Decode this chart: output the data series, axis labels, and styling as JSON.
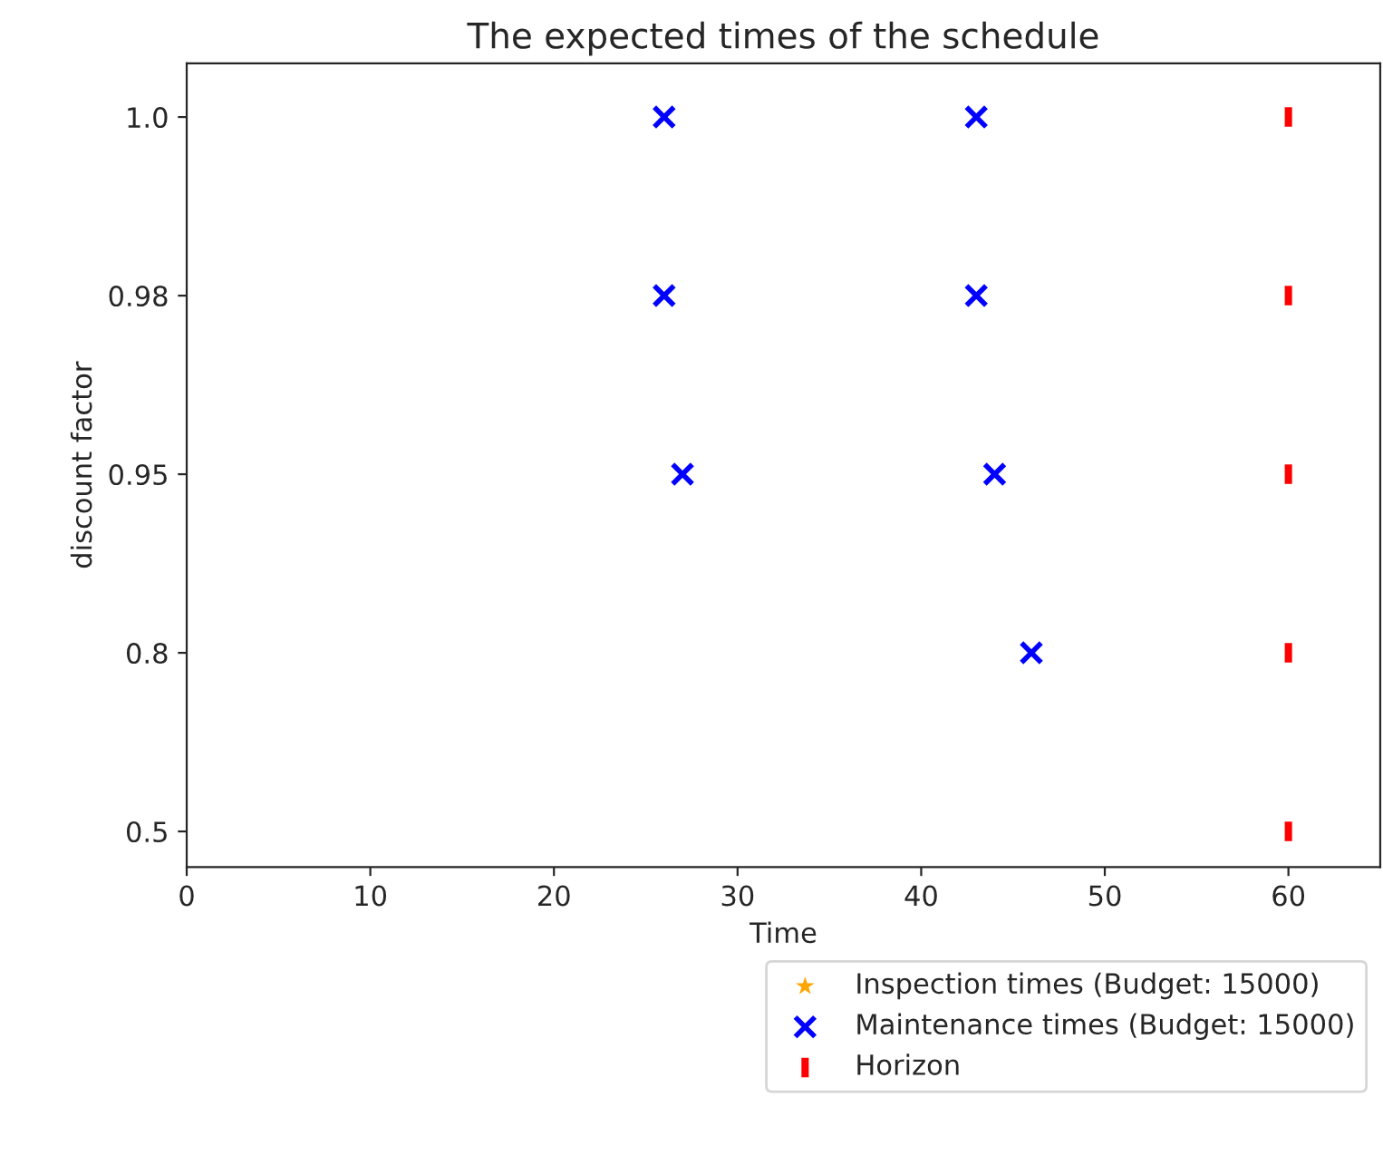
{
  "chart_data": {
    "type": "scatter",
    "orientation": "horizontal",
    "title": "The expected times of the schedule",
    "xlabel": "Time",
    "ylabel": "discount factor",
    "categories": [
      "1.0",
      "0.98",
      "0.95",
      "0.8",
      "0.5"
    ],
    "series": [
      {
        "name": "Inspection times (Budget: 15000)",
        "color": "#ffa500",
        "marker": "star",
        "values": [
          null,
          null,
          null,
          null,
          null
        ]
      },
      {
        "name": "Maintenance times (Budget: 15000)",
        "color": "#0000ff",
        "marker": "cross",
        "values": [
          26,
          26,
          27,
          null,
          null
        ]
      },
      {
        "color": "#0000ff",
        "marker": "cross",
        "values": [
          43,
          43,
          44,
          46,
          null
        ]
      },
      {
        "name": "Horizon",
        "color": "#ff0000",
        "values": [
          60,
          60,
          60,
          60,
          60
        ]
      }
    ],
    "xlim": [
      0,
      65
    ],
    "xticks": [
      0,
      10,
      20,
      30,
      40,
      50,
      60
    ],
    "legend": "bottom right"
  }
}
